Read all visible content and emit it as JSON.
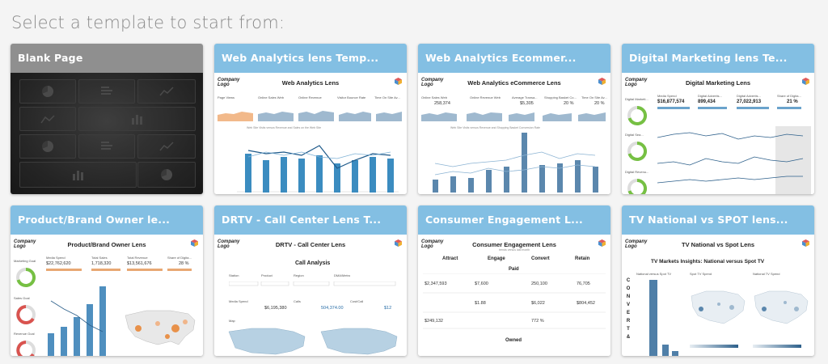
{
  "page": {
    "heading": "Select a template to start from:"
  },
  "templates": [
    {
      "title": "Blank Page"
    },
    {
      "title": "Web Analytics lens Temp...",
      "report_title": "Web Analytics Lens",
      "logo": [
        "Company",
        "Logo"
      ],
      "kpis": [
        "Page Views",
        "Online Sales Web",
        "Online Revenue",
        "Visitor Bounce Rate",
        "Time On Site Av..."
      ],
      "chart_caption": "Web Site Visits versus Revenue and Sales on the Web Site"
    },
    {
      "title": "Web Analytics Ecommer...",
      "report_title": "Web Analytics eCommerce Lens",
      "logo": [
        "Company",
        "Logo"
      ],
      "kpis": [
        "Online Sales Web",
        "Online Revenue Web",
        "Average Transa...",
        "Shopping Basket Co...",
        "Time On Site Av..."
      ],
      "kpi_values": [
        "258,374",
        "$5,305",
        "20 %",
        "20 %"
      ],
      "chart_caption": "Web Site Visits versus Revenue and Shopping Basket Conversion Rate"
    },
    {
      "title": "Digital Marketing lens Te...",
      "report_title": "Digital Marketing Lens",
      "logo": [
        "Company",
        "Logo"
      ],
      "kpis": [
        "Media Spend",
        "Digital Advertis...",
        "Digital Advertis...",
        "Share of Digita..."
      ],
      "kpi_values": [
        "$16,877,574",
        "899,434",
        "27,022,913",
        "21 %"
      ],
      "side_labels": [
        "Digital Marketi...",
        "Digital Sea...",
        "Digital Revenu..."
      ]
    },
    {
      "title": "Product/Brand Owner le...",
      "report_title": "Product/Brand Owner Lens",
      "logo": [
        "Company",
        "Logo"
      ],
      "kpis": [
        "Media Spend",
        "Total Sales",
        "Total Revenue",
        "Share of Digita..."
      ],
      "kpi_values": [
        "$22,762,620",
        "1,718,320",
        "$13,561,676",
        "28 %"
      ],
      "side_labels": [
        "Marketing Goal",
        "Sales Goal",
        "Revenue Goal"
      ]
    },
    {
      "title": "DRTV - Call Center Lens T...",
      "report_title": "DRTV - Call Center Lens",
      "logo": [
        "Company",
        "Logo"
      ],
      "section": "Call Analysis",
      "kpis": [
        "Station",
        "Product",
        "Region",
        "DMA/Metro",
        "Media Spend",
        "Calls",
        "Cost/Call"
      ],
      "kpi_values": [
        "$6,195,380",
        "504,374.00",
        "$12"
      ],
      "map_label": "Map"
    },
    {
      "title": "Consumer Engagement L...",
      "report_title": "Consumer Engagement Lens",
      "logo": [
        "Company",
        "Logo"
      ],
      "subtitle": "trends versus last month",
      "stages": [
        "Attract",
        "Engage",
        "Convert",
        "Retain"
      ],
      "sections": [
        "Paid",
        "Owned"
      ],
      "kpi_values": [
        "$2,347,593",
        "$7,600",
        "250,100",
        "76,705",
        "$1.88",
        "$6,022",
        "$804,452",
        "$249,132",
        "772 %"
      ]
    },
    {
      "title": "TV National vs SPOT lens...",
      "report_title": "TV National vs Spot Lens",
      "logo": [
        "Company",
        "Logo"
      ],
      "section": "TV Markets Insights: National versus Spot TV",
      "side_text": [
        "C",
        "O",
        "N",
        "V",
        "E",
        "R",
        "T",
        "&"
      ],
      "panel_labels": [
        "National versus Spot TV",
        "Spot TV Spend",
        "National TV Spend"
      ]
    }
  ],
  "colors": {
    "header": "#83bfe3",
    "blank_header": "#8f8f8f",
    "bar": "#4f8fbf",
    "green": "#76c043",
    "red": "#d9534f",
    "orange": "#e8914a"
  }
}
